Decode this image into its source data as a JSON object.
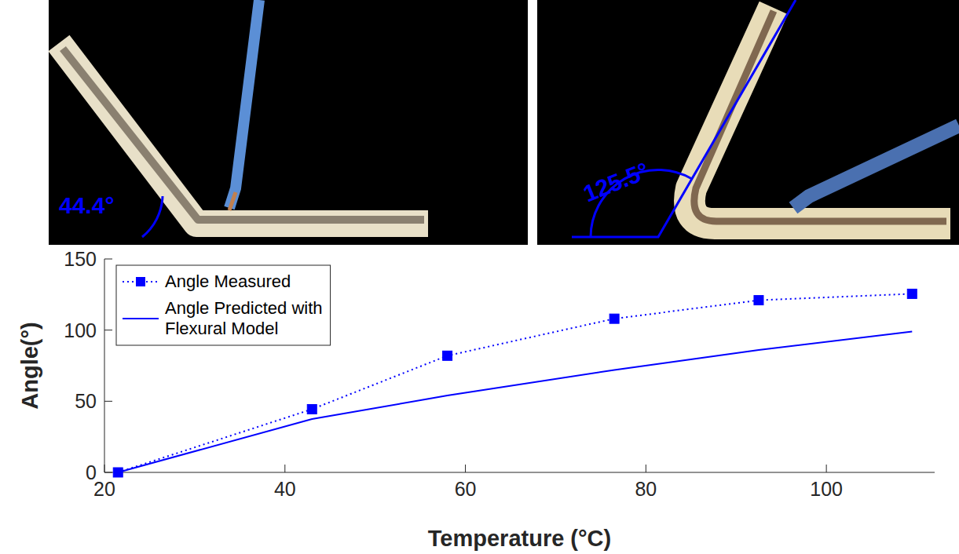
{
  "chart_data": {
    "type": "line",
    "x_label": "Temperature (°C)",
    "y_label": "Angle(°)",
    "x": [
      21.5,
      43,
      58,
      76.5,
      92.5,
      109.5
    ],
    "series": [
      {
        "name": "Angle Measured",
        "color": "#0000ff",
        "marker": "square",
        "line_style": "dotted",
        "values": [
          0,
          44.4,
          82,
          108,
          121,
          125.5
        ]
      },
      {
        "name": "Angle Predicted with Flexural Model",
        "color": "#0000ff",
        "marker": "none",
        "line_style": "solid",
        "values": [
          0,
          37.5,
          54,
          72,
          86,
          99
        ]
      }
    ],
    "xlim": [
      20,
      112
    ],
    "xticks": [
      20,
      40,
      60,
      80,
      100
    ],
    "ylim": [
      0,
      150
    ],
    "yticks": [
      0,
      50,
      100,
      150
    ],
    "grid": false,
    "legend": "upper left",
    "annotations": [
      {
        "text": "44.4°"
      },
      {
        "text": "125.5°"
      }
    ]
  }
}
